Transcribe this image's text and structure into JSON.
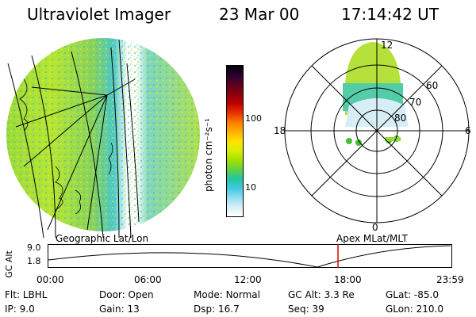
{
  "header": {
    "title": "Ultraviolet Imager",
    "date": "23 Mar 00",
    "time": "17:14:42 UT"
  },
  "colorbar": {
    "label": "photon cm⁻²s⁻¹",
    "ticks": [
      "100",
      "10"
    ],
    "colors": [
      "#000000",
      "#2b0030",
      "#5a0020",
      "#8a0010",
      "#c00000",
      "#e83000",
      "#ff7a00",
      "#ffb000",
      "#ffe000",
      "#d8f000",
      "#a6e000",
      "#66d040",
      "#20c8a0",
      "#40c8e0",
      "#90dcf0",
      "#d8eef8",
      "#ffffff"
    ]
  },
  "polar": {
    "ring_labels": [
      "60",
      "70",
      "80"
    ],
    "mlt_labels": {
      "top": "12",
      "left": "18",
      "right": "6",
      "bottom": "0"
    }
  },
  "left_panel_label": "Geographic Lat/Lon",
  "right_panel_label": "Apex MLat/MLT",
  "altitude_plot": {
    "axis_label": "GC Alt",
    "y_ticks": [
      "9.0",
      "1.8"
    ],
    "x_ticks": [
      "00:00",
      "06:00",
      "12:00",
      "18:00",
      "23:59"
    ],
    "marker_time": "17:14",
    "marker_color": "#e00000"
  },
  "footer": {
    "rows": [
      [
        {
          "key": "Flt:",
          "val": "LBHL"
        },
        {
          "key": "Door:",
          "val": "Open"
        },
        {
          "key": "Mode:",
          "val": "Normal"
        },
        {
          "key": "GC Alt:",
          "val": "3.3 Re"
        },
        {
          "key": "GLat:",
          "val": "-85.0"
        }
      ],
      [
        {
          "key": "IP:",
          "val": "9.0"
        },
        {
          "key": "Gain:",
          "val": "13"
        },
        {
          "key": "Dsp:",
          "val": "16.7"
        },
        {
          "key": "Seq:",
          "val": "39"
        },
        {
          "key": "GLon:",
          "val": "210.0"
        }
      ]
    ]
  }
}
